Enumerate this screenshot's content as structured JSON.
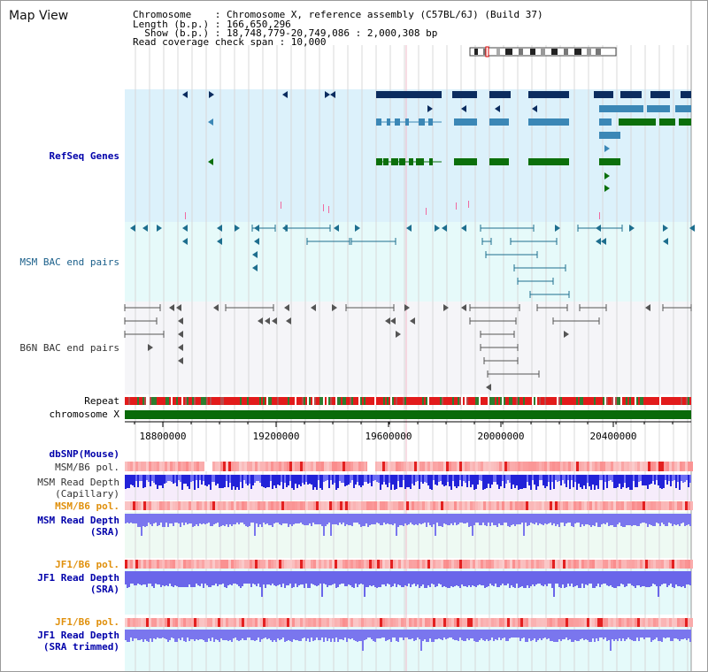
{
  "view_title": "Map View",
  "header": {
    "line1": "Chromosome    : Chromosome X, reference assembly (C57BL/6J) (Build 37)",
    "line2": "Length (b.p.) : 166,650,296",
    "line3": "  Show (b.p.) : 18,748,779-20,749,086 : 2,000,308 bp",
    "line4": "Read coverage check span : 10,000"
  },
  "tracks": {
    "refseq": "RefSeq Genes",
    "msm_bac": "MSM BAC end pairs",
    "b6n_bac": "B6N BAC end pairs",
    "repeat": "Repeat",
    "chromosome": "chromosome X",
    "dbsnp": "dbSNP(Mouse)",
    "msm_b6_pol_1": "MSM/B6 pol.",
    "msm_read_depth_cap_1": "MSM Read Depth",
    "msm_read_depth_cap_2": "(Capillary)",
    "msm_b6_pol_2": "MSM/B6 pol.",
    "msm_read_depth_sra_1": "MSM Read Depth",
    "msm_read_depth_sra_2": "(SRA)",
    "jf1_b6_pol_1": "JF1/B6 pol.",
    "jf1_read_depth_sra_1": "JF1 Read Depth",
    "jf1_read_depth_sra_2": "(SRA)",
    "jf1_b6_pol_2": "JF1/B6 pol.",
    "jf1_read_depth_trim_1": "JF1 Read Depth",
    "jf1_read_depth_trim_2": "(SRA trimmed)"
  },
  "axis": {
    "ticks": [
      "18800000",
      "19200000",
      "19600000",
      "20000000",
      "20400000"
    ]
  },
  "colors": {
    "refseq_bg": "#dcf1fb",
    "msm_bac_bg": "#e6fafa",
    "b6n_bac_bg": "#f5f5f8",
    "gene_dark": "#0b2c5f",
    "gene_light": "#3b87b6",
    "gene_green": "#0b6f0b",
    "chromosome_bar": "#0a6a0a",
    "repeat_red": "#e21b1b",
    "read_depth_dark": "#2222d8",
    "read_depth_light": "#7a76ee",
    "pol_red": "#f3a0a0"
  },
  "icons": {
    "chromosome_ideogram": "chromosome-ideogram-icon"
  }
}
